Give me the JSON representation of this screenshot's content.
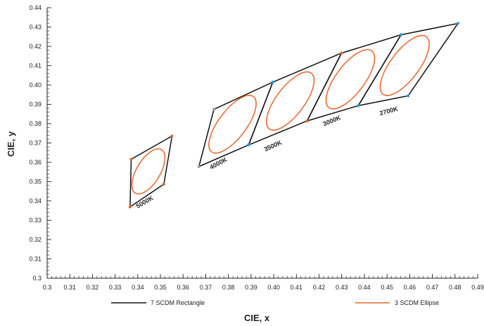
{
  "chart_data": {
    "type": "scatter",
    "xlabel": "CIE, x",
    "ylabel": "CIE, y",
    "xlim": [
      0.3,
      0.49
    ],
    "ylim": [
      0.3,
      0.44
    ],
    "xticks": [
      "0.3",
      "0.31",
      "0.32",
      "0.33",
      "0.34",
      "0.35",
      "0.36",
      "0.37",
      "0.38",
      "0.39",
      "0.40",
      "0.41",
      "0.42",
      "0.43",
      "0.44",
      "0.45",
      "0.46",
      "0.47",
      "0.48",
      "0.49"
    ],
    "yticks": [
      "0.3",
      "0.31",
      "0.32",
      "0.33",
      "0.34",
      "0.35",
      "0.36",
      "0.37",
      "0.38",
      "0.39",
      "0.40",
      "0.41",
      "0.42",
      "0.43",
      "0.44"
    ],
    "legend": {
      "placement": "bottom",
      "rectangle_label": "7 SCDM Rectangle",
      "ellipse_label": "3 SCDM Ellipse"
    },
    "colors": {
      "rectangle": "#111111",
      "ellipse": "#e8662a",
      "vertex_orange": "#e8662a",
      "vertex_blue": "#2b9bd6",
      "vertex_gray": "#9a9a9a"
    },
    "cct_regions": [
      {
        "label": "5000K",
        "quad": [
          [
            0.3371,
            0.3616
          ],
          [
            0.3551,
            0.3736
          ],
          [
            0.3515,
            0.3487
          ],
          [
            0.3366,
            0.3369
          ]
        ],
        "vertex_colors": [
          "vertex_orange",
          "vertex_orange",
          "vertex_orange",
          "vertex_orange"
        ],
        "ellipse": {
          "cx": 0.3447,
          "cy": 0.3553,
          "rx": 0.0112,
          "ry": 0.0052,
          "angle": 59
        },
        "label_pos": [
          0.3435,
          0.3385
        ],
        "label_angle": -30
      },
      {
        "label": "4000K",
        "quad": [
          [
            0.3736,
            0.3874
          ],
          [
            0.3996,
            0.4015
          ],
          [
            0.3889,
            0.369
          ],
          [
            0.367,
            0.3578
          ]
        ],
        "vertex_colors": [
          "vertex_gray",
          "vertex_blue",
          "vertex_blue",
          "vertex_gray"
        ],
        "ellipse": {
          "cx": 0.3818,
          "cy": 0.3797,
          "rx": 0.0153,
          "ry": 0.0061,
          "angle": 53
        },
        "label_pos": [
          0.376,
          0.3585
        ],
        "label_angle": -28
      },
      {
        "label": "3500K",
        "quad": [
          [
            0.3996,
            0.4015
          ],
          [
            0.4299,
            0.4165
          ],
          [
            0.4147,
            0.3814
          ],
          [
            0.3889,
            0.369
          ]
        ],
        "vertex_colors": [
          "vertex_blue",
          "vertex_orange",
          "vertex_orange",
          "vertex_blue"
        ],
        "ellipse": {
          "cx": 0.4073,
          "cy": 0.3917,
          "rx": 0.0154,
          "ry": 0.0062,
          "angle": 53
        },
        "label_pos": [
          0.4,
          0.3675
        ],
        "label_angle": -24
      },
      {
        "label": "3000K",
        "quad": [
          [
            0.4299,
            0.4165
          ],
          [
            0.4562,
            0.426
          ],
          [
            0.4373,
            0.3893
          ],
          [
            0.4147,
            0.3814
          ]
        ],
        "vertex_colors": [
          "vertex_orange",
          "vertex_blue",
          "vertex_blue",
          "vertex_orange"
        ],
        "ellipse": {
          "cx": 0.4338,
          "cy": 0.403,
          "rx": 0.0157,
          "ry": 0.0063,
          "angle": 53
        },
        "label_pos": [
          0.426,
          0.3805
        ],
        "label_angle": -22
      },
      {
        "label": "2700K",
        "quad": [
          [
            0.4562,
            0.426
          ],
          [
            0.4813,
            0.4319
          ],
          [
            0.4593,
            0.3944
          ],
          [
            0.4373,
            0.3893
          ]
        ],
        "vertex_colors": [
          "vertex_blue",
          "vertex_blue",
          "vertex_blue",
          "vertex_blue"
        ],
        "ellipse": {
          "cx": 0.4578,
          "cy": 0.4101,
          "rx": 0.0159,
          "ry": 0.0063,
          "angle": 53
        },
        "label_pos": [
          0.451,
          0.3855
        ],
        "label_angle": -15
      }
    ]
  }
}
